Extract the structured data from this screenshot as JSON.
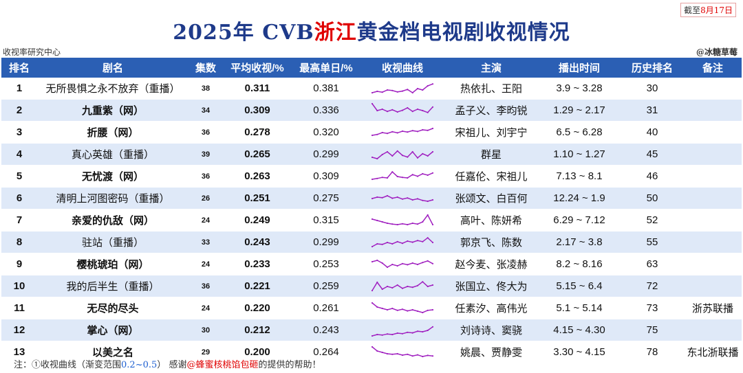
{
  "date_note": {
    "prefix": "截至",
    "date": "8月17日"
  },
  "title": {
    "part1": "2025年 CVB",
    "highlight": "浙江",
    "part2": "黄金档电视剧收视情况"
  },
  "org": "收视率研究中心",
  "credit": "@冰糖草莓",
  "headers": [
    "排名",
    "剧名",
    "集数",
    "平均收视/%",
    "最高单日/%",
    "收视曲线",
    "主演",
    "播出时间",
    "历史排名",
    "备注"
  ],
  "curve_color": "#a020c0",
  "rows": [
    {
      "rank": "1",
      "title": "无所畏惧之永不放弃（重播）",
      "bold": false,
      "episodes": "38",
      "avg": "0.311",
      "peak": "0.381",
      "cast": "热依扎、王阳",
      "air": "3.9 ~ 3.28",
      "history": "30",
      "note": "",
      "curve": [
        0.3,
        0.35,
        0.32,
        0.4,
        0.38,
        0.33,
        0.36,
        0.42,
        0.3,
        0.45,
        0.4,
        0.55,
        0.62
      ]
    },
    {
      "rank": "2",
      "title": "九重紫（网）",
      "bold": true,
      "episodes": "34",
      "avg": "0.309",
      "peak": "0.336",
      "cast": "孟子义、李昀锐",
      "air": "1.29 ~ 2.17",
      "history": "31",
      "note": "",
      "curve": [
        0.7,
        0.45,
        0.5,
        0.42,
        0.48,
        0.4,
        0.46,
        0.55,
        0.42,
        0.5,
        0.45,
        0.38,
        0.58
      ]
    },
    {
      "rank": "3",
      "title": "折腰（网）",
      "bold": true,
      "episodes": "36",
      "avg": "0.278",
      "peak": "0.320",
      "cast": "宋祖儿、刘宇宁",
      "air": "6.5 ~ 6.28",
      "history": "40",
      "note": "",
      "curve": [
        0.35,
        0.38,
        0.45,
        0.42,
        0.48,
        0.44,
        0.5,
        0.47,
        0.52,
        0.49,
        0.55,
        0.53,
        0.6
      ]
    },
    {
      "rank": "4",
      "title": "真心英雄（重播）",
      "bold": false,
      "episodes": "39",
      "avg": "0.265",
      "peak": "0.299",
      "cast": "群星",
      "air": "1.10 ~ 1.27",
      "history": "45",
      "note": "",
      "curve": [
        0.35,
        0.3,
        0.45,
        0.55,
        0.4,
        0.58,
        0.42,
        0.36,
        0.55,
        0.33,
        0.48,
        0.4,
        0.55
      ]
    },
    {
      "rank": "5",
      "title": "无忧渡（网）",
      "bold": true,
      "episodes": "36",
      "avg": "0.263",
      "peak": "0.309",
      "cast": "任嘉伦、宋祖儿",
      "air": "7.13 ~ 8.1",
      "history": "46",
      "note": "",
      "curve": [
        0.35,
        0.38,
        0.42,
        0.4,
        0.62,
        0.45,
        0.42,
        0.4,
        0.52,
        0.46,
        0.55,
        0.5,
        0.58
      ]
    },
    {
      "rank": "6",
      "title": "清明上河图密码（重播）",
      "bold": false,
      "episodes": "26",
      "avg": "0.251",
      "peak": "0.275",
      "cast": "张颂文、白百何",
      "air": "12.24 ~ 1.9",
      "history": "50",
      "note": "",
      "curve": [
        0.45,
        0.5,
        0.48,
        0.55,
        0.46,
        0.5,
        0.43,
        0.47,
        0.4,
        0.44,
        0.38,
        0.35,
        0.4
      ]
    },
    {
      "rank": "7",
      "title": "亲爱的仇敌（网）",
      "bold": true,
      "episodes": "24",
      "avg": "0.249",
      "peak": "0.315",
      "cast": "高叶、陈妍希",
      "air": "6.29 ~ 7.12",
      "history": "52",
      "note": "",
      "curve": [
        0.5,
        0.45,
        0.4,
        0.35,
        0.32,
        0.3,
        0.33,
        0.3,
        0.35,
        0.32,
        0.4,
        0.65,
        0.3
      ]
    },
    {
      "rank": "8",
      "title": "驻站（重播）",
      "bold": false,
      "episodes": "33",
      "avg": "0.243",
      "peak": "0.299",
      "cast": "郭京飞、陈数",
      "air": "2.17 ~ 3.8",
      "history": "55",
      "note": "",
      "curve": [
        0.3,
        0.4,
        0.38,
        0.45,
        0.4,
        0.48,
        0.42,
        0.5,
        0.46,
        0.52,
        0.48,
        0.62,
        0.45
      ]
    },
    {
      "rank": "9",
      "title": "樱桃琥珀（网）",
      "bold": true,
      "episodes": "24",
      "avg": "0.233",
      "peak": "0.253",
      "cast": "赵今麦、张凌赫",
      "air": "8.2 ~ 8.16",
      "history": "63",
      "note": "",
      "curve": [
        0.55,
        0.6,
        0.5,
        0.35,
        0.45,
        0.4,
        0.48,
        0.44,
        0.5,
        0.45,
        0.52,
        0.58,
        0.48
      ]
    },
    {
      "rank": "10",
      "title": "我的后半生（重播）",
      "bold": false,
      "episodes": "36",
      "avg": "0.221",
      "peak": "0.259",
      "cast": "张国立、佟大为",
      "air": "5.15 ~ 6.4",
      "history": "72",
      "note": "",
      "curve": [
        0.3,
        0.6,
        0.35,
        0.45,
        0.4,
        0.5,
        0.38,
        0.45,
        0.42,
        0.48,
        0.62,
        0.45,
        0.5
      ]
    },
    {
      "rank": "11",
      "title": "无尽的尽头",
      "bold": true,
      "episodes": "24",
      "avg": "0.220",
      "peak": "0.261",
      "cast": "任素汐、高伟光",
      "air": "5.1 ~ 5.14",
      "history": "73",
      "note": "浙苏联播",
      "curve": [
        0.65,
        0.5,
        0.45,
        0.4,
        0.45,
        0.38,
        0.42,
        0.36,
        0.4,
        0.35,
        0.3,
        0.38,
        0.4
      ]
    },
    {
      "rank": "12",
      "title": "掌心（网）",
      "bold": true,
      "episodes": "30",
      "avg": "0.212",
      "peak": "0.243",
      "cast": "刘诗诗、窦骁",
      "air": "4.15 ~ 4.30",
      "history": "75",
      "note": "",
      "curve": [
        0.25,
        0.3,
        0.28,
        0.32,
        0.3,
        0.35,
        0.33,
        0.38,
        0.36,
        0.42,
        0.4,
        0.45,
        0.58
      ]
    },
    {
      "rank": "13",
      "title": "以美之名",
      "bold": true,
      "episodes": "29",
      "avg": "0.200",
      "peak": "0.264",
      "cast": "姚晨、贾静雯",
      "air": "3.30 ~ 4.15",
      "history": "78",
      "note": "东北浙联播",
      "curve": [
        0.65,
        0.5,
        0.45,
        0.4,
        0.38,
        0.4,
        0.35,
        0.38,
        0.32,
        0.36,
        0.3,
        0.34,
        0.32
      ]
    }
  ],
  "footnote": {
    "prefix": "注：",
    "item1": "①收视曲线（渐变范围",
    "range": "0.2~0.5",
    "item1_end": "）",
    "thanks_prefix": "感谢",
    "thanks_name": "@蜂蜜核桃馅包砸",
    "thanks_suffix": "的提供的帮助！"
  }
}
